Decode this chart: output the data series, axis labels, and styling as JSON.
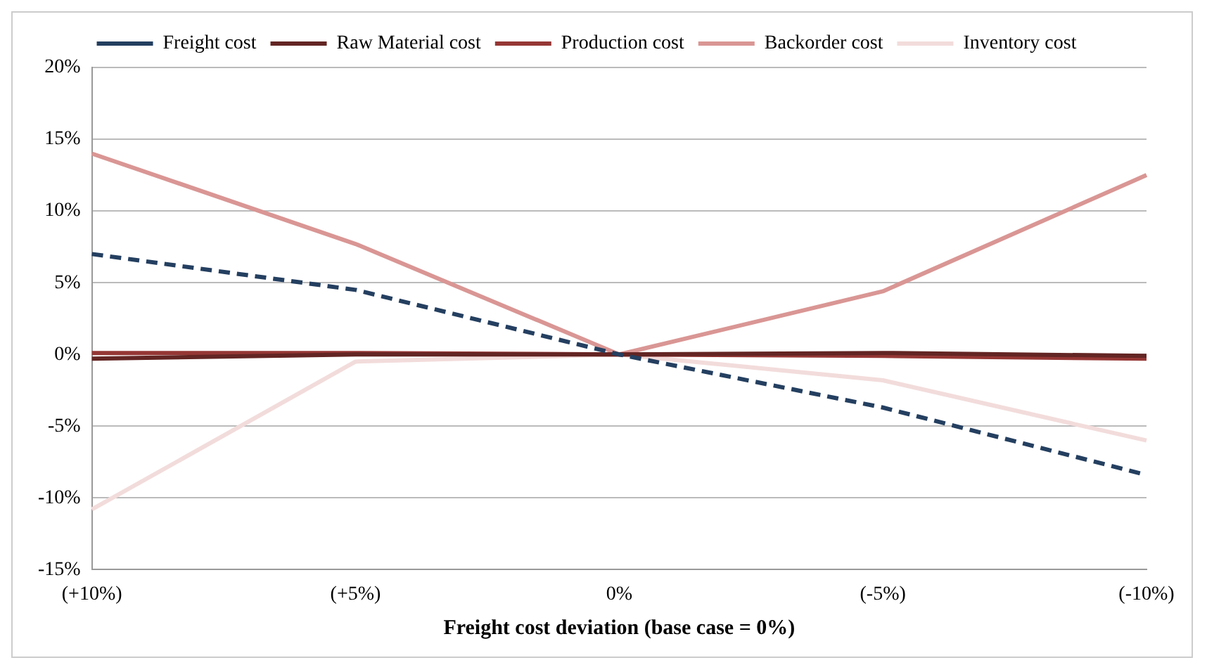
{
  "chart_data": {
    "type": "line",
    "xlabel": "Freight cost deviation (base case = 0%)",
    "categories": [
      "(+10%)",
      "(+5%)",
      "0%",
      "(-5%)",
      "(-10%)"
    ],
    "series": [
      {
        "name": "Freight cost",
        "color": "#243f60",
        "values": [
          7,
          4.5,
          0,
          -3.7,
          -8.4
        ],
        "line_style": "dashed"
      },
      {
        "name": "Raw Material cost",
        "color": "#632523",
        "values": [
          -0.3,
          0,
          0,
          0.1,
          -0.1
        ]
      },
      {
        "name": "Production cost",
        "color": "#953735",
        "values": [
          0.1,
          0.1,
          0,
          -0.1,
          -0.3
        ]
      },
      {
        "name": "Backorder cost",
        "color": "#d99694",
        "values": [
          14,
          7.7,
          0,
          4.4,
          12.5
        ]
      },
      {
        "name": "Inventory cost",
        "color": "#f2dcdb",
        "values": [
          -10.8,
          -0.5,
          0,
          -1.8,
          -6
        ]
      }
    ],
    "ylim": [
      -15,
      20
    ],
    "yticks": [
      {
        "value": -15,
        "label": "-15%"
      },
      {
        "value": -10,
        "label": "-10%"
      },
      {
        "value": -5,
        "label": "-5%"
      },
      {
        "value": 0,
        "label": "0%"
      },
      {
        "value": 5,
        "label": "5%"
      },
      {
        "value": 10,
        "label": "10%"
      },
      {
        "value": 15,
        "label": "15%"
      },
      {
        "value": 20,
        "label": "20%"
      }
    ],
    "grid": "y",
    "legend": "top",
    "marker": "none",
    "line_style": "solid"
  }
}
